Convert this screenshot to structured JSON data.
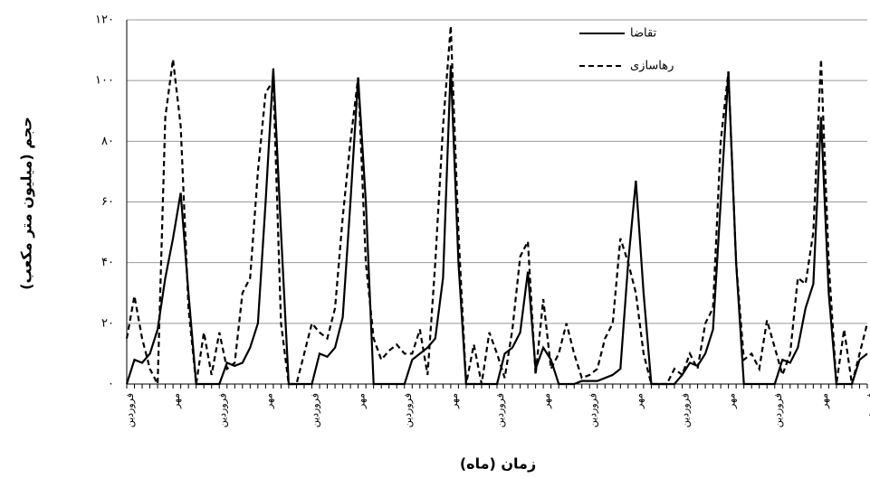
{
  "chart_data": {
    "type": "line",
    "y_label": "حجم (میلیون متر مکعب)",
    "x_label": "زمان (ماه)",
    "categories": [
      "فروردین",
      null,
      null,
      null,
      null,
      null,
      "مهر",
      null,
      null,
      null,
      null,
      null,
      "فروردین",
      null,
      null,
      null,
      null,
      null,
      "مهر",
      null,
      null,
      null,
      null,
      null,
      "فروردین",
      null,
      null,
      null,
      null,
      null,
      "مهر",
      null,
      null,
      null,
      null,
      null,
      "فروردین",
      null,
      null,
      null,
      null,
      null,
      "مهر",
      null,
      null,
      null,
      null,
      null,
      "فروردین",
      null,
      null,
      null,
      null,
      null,
      "مهر",
      null,
      null,
      null,
      null,
      null,
      "فروردین",
      null,
      null,
      null,
      null,
      null,
      "مهر",
      null,
      null,
      null,
      null,
      null,
      "فروردین",
      null,
      null,
      null,
      null,
      null,
      "مهر",
      null,
      null,
      null,
      null,
      null,
      "فروردین",
      null,
      null,
      null,
      null,
      null,
      "مهر",
      null,
      null,
      null,
      null,
      null,
      "فروردین"
    ],
    "series": [
      {
        "name": "تقاضا",
        "color": "#000000",
        "style": "solid",
        "values": [
          0,
          8,
          7,
          10,
          18,
          35,
          48,
          63,
          30,
          0,
          0,
          0,
          0,
          7,
          6,
          7,
          12,
          20,
          60,
          104,
          50,
          0,
          0,
          0,
          0,
          10,
          9,
          12,
          22,
          60,
          101,
          60,
          0,
          0,
          0,
          0,
          0,
          8,
          10,
          12,
          15,
          35,
          105,
          40,
          0,
          0,
          0,
          0,
          0,
          10,
          12,
          17,
          37,
          5,
          12,
          8,
          0,
          0,
          0,
          1,
          1,
          1,
          2,
          3,
          5,
          40,
          67,
          30,
          0,
          0,
          0,
          0,
          3,
          7,
          6,
          10,
          18,
          60,
          103,
          40,
          0,
          0,
          0,
          0,
          0,
          8,
          7,
          12,
          25,
          33,
          88,
          30,
          0,
          0,
          0,
          8,
          10
        ]
      },
      {
        "name": "رهاسازی",
        "color": "#000000",
        "style": "dashed",
        "values": [
          15,
          29,
          15,
          5,
          0,
          88,
          107,
          85,
          25,
          0,
          17,
          3,
          17,
          5,
          7,
          30,
          35,
          70,
          96,
          100,
          20,
          0,
          0,
          10,
          20,
          17,
          15,
          25,
          55,
          80,
          101,
          40,
          15,
          8,
          11,
          13,
          10,
          10,
          18,
          3,
          40,
          85,
          118,
          50,
          0,
          13,
          0,
          17,
          10,
          2,
          18,
          42,
          47,
          3,
          28,
          5,
          10,
          20,
          10,
          2,
          3,
          5,
          15,
          20,
          48,
          40,
          30,
          10,
          0,
          0,
          0,
          5,
          3,
          10,
          5,
          20,
          25,
          80,
          103,
          40,
          8,
          10,
          5,
          21,
          12,
          3,
          10,
          35,
          33,
          50,
          107,
          40,
          0,
          18,
          0,
          10,
          20
        ]
      }
    ],
    "ylim": [
      0,
      120
    ],
    "yticks": [
      {
        "value": 0,
        "label": "۰"
      },
      {
        "value": 20,
        "label": "۲۰"
      },
      {
        "value": 40,
        "label": "۴۰"
      },
      {
        "value": 60,
        "label": "۶۰"
      },
      {
        "value": 80,
        "label": "۸۰"
      },
      {
        "value": 100,
        "label": "۱۰۰"
      },
      {
        "value": 120,
        "label": "۱۲۰"
      }
    ],
    "grid": true,
    "legend": "top-right"
  }
}
